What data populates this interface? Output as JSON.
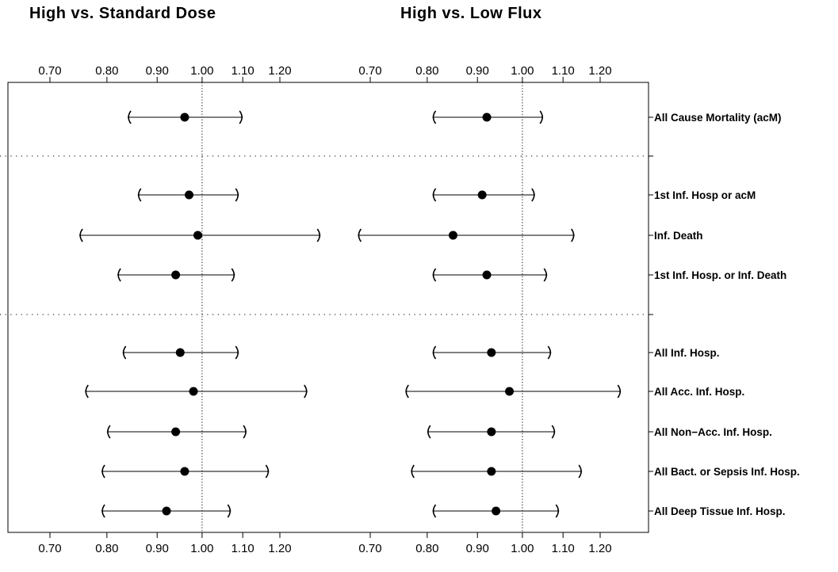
{
  "titles": {
    "left": "High  vs.  Standard Dose",
    "right": "High  vs.  Low Flux"
  },
  "chart_data": {
    "type": "forest",
    "scale": "log",
    "reference_line": 1.0,
    "xticks": [
      0.7,
      0.8,
      0.9,
      1.0,
      1.1,
      1.2
    ],
    "xtick_labels": [
      "0.70",
      "0.80",
      "0.90",
      "1.00",
      "1.10",
      "1.20"
    ],
    "xlim": [
      0.68,
      1.32
    ],
    "groups": [
      [
        "All Cause Mortality (acM)"
      ],
      [
        "1st Inf. Hosp or acM",
        "Inf. Death",
        "1st Inf. Hosp. or Inf. Death"
      ],
      [
        "All Inf. Hosp.",
        "All Acc. Inf. Hosp.",
        "All Non−Acc. Inf. Hosp.",
        "All Bact. or Sepsis Inf. Hosp.",
        "All Deep Tissue Inf. Hosp."
      ]
    ],
    "outcomes": [
      "All Cause Mortality (acM)",
      "1st Inf. Hosp or acM",
      "Inf. Death",
      "1st Inf. Hosp. or Inf. Death",
      "All Inf. Hosp.",
      "All Acc. Inf. Hosp.",
      "All Non−Acc. Inf. Hosp.",
      "All Bact. or Sepsis Inf. Hosp.",
      "All Deep Tissue Inf. Hosp."
    ],
    "panels": [
      {
        "title": "High  vs.  Standard Dose",
        "estimates": [
          {
            "rr": 0.96,
            "lower": 0.84,
            "upper": 1.1
          },
          {
            "rr": 0.97,
            "lower": 0.86,
            "upper": 1.09
          },
          {
            "rr": 0.99,
            "lower": 0.75,
            "upper": 1.32
          },
          {
            "rr": 0.94,
            "lower": 0.82,
            "upper": 1.08
          },
          {
            "rr": 0.95,
            "lower": 0.83,
            "upper": 1.09
          },
          {
            "rr": 0.98,
            "lower": 0.76,
            "upper": 1.28
          },
          {
            "rr": 0.94,
            "lower": 0.8,
            "upper": 1.11
          },
          {
            "rr": 0.96,
            "lower": 0.79,
            "upper": 1.17
          },
          {
            "rr": 0.92,
            "lower": 0.79,
            "upper": 1.07
          }
        ]
      },
      {
        "title": "High  vs.  Low Flux",
        "estimates": [
          {
            "rr": 0.92,
            "lower": 0.81,
            "upper": 1.05
          },
          {
            "rr": 0.91,
            "lower": 0.81,
            "upper": 1.03
          },
          {
            "rr": 0.85,
            "lower": 0.68,
            "upper": 1.13
          },
          {
            "rr": 0.92,
            "lower": 0.81,
            "upper": 1.06
          },
          {
            "rr": 0.93,
            "lower": 0.81,
            "upper": 1.07
          },
          {
            "rr": 0.97,
            "lower": 0.76,
            "upper": 1.26
          },
          {
            "rr": 0.93,
            "lower": 0.8,
            "upper": 1.08
          },
          {
            "rr": 0.93,
            "lower": 0.77,
            "upper": 1.15
          },
          {
            "rr": 0.94,
            "lower": 0.81,
            "upper": 1.09
          }
        ]
      }
    ]
  }
}
